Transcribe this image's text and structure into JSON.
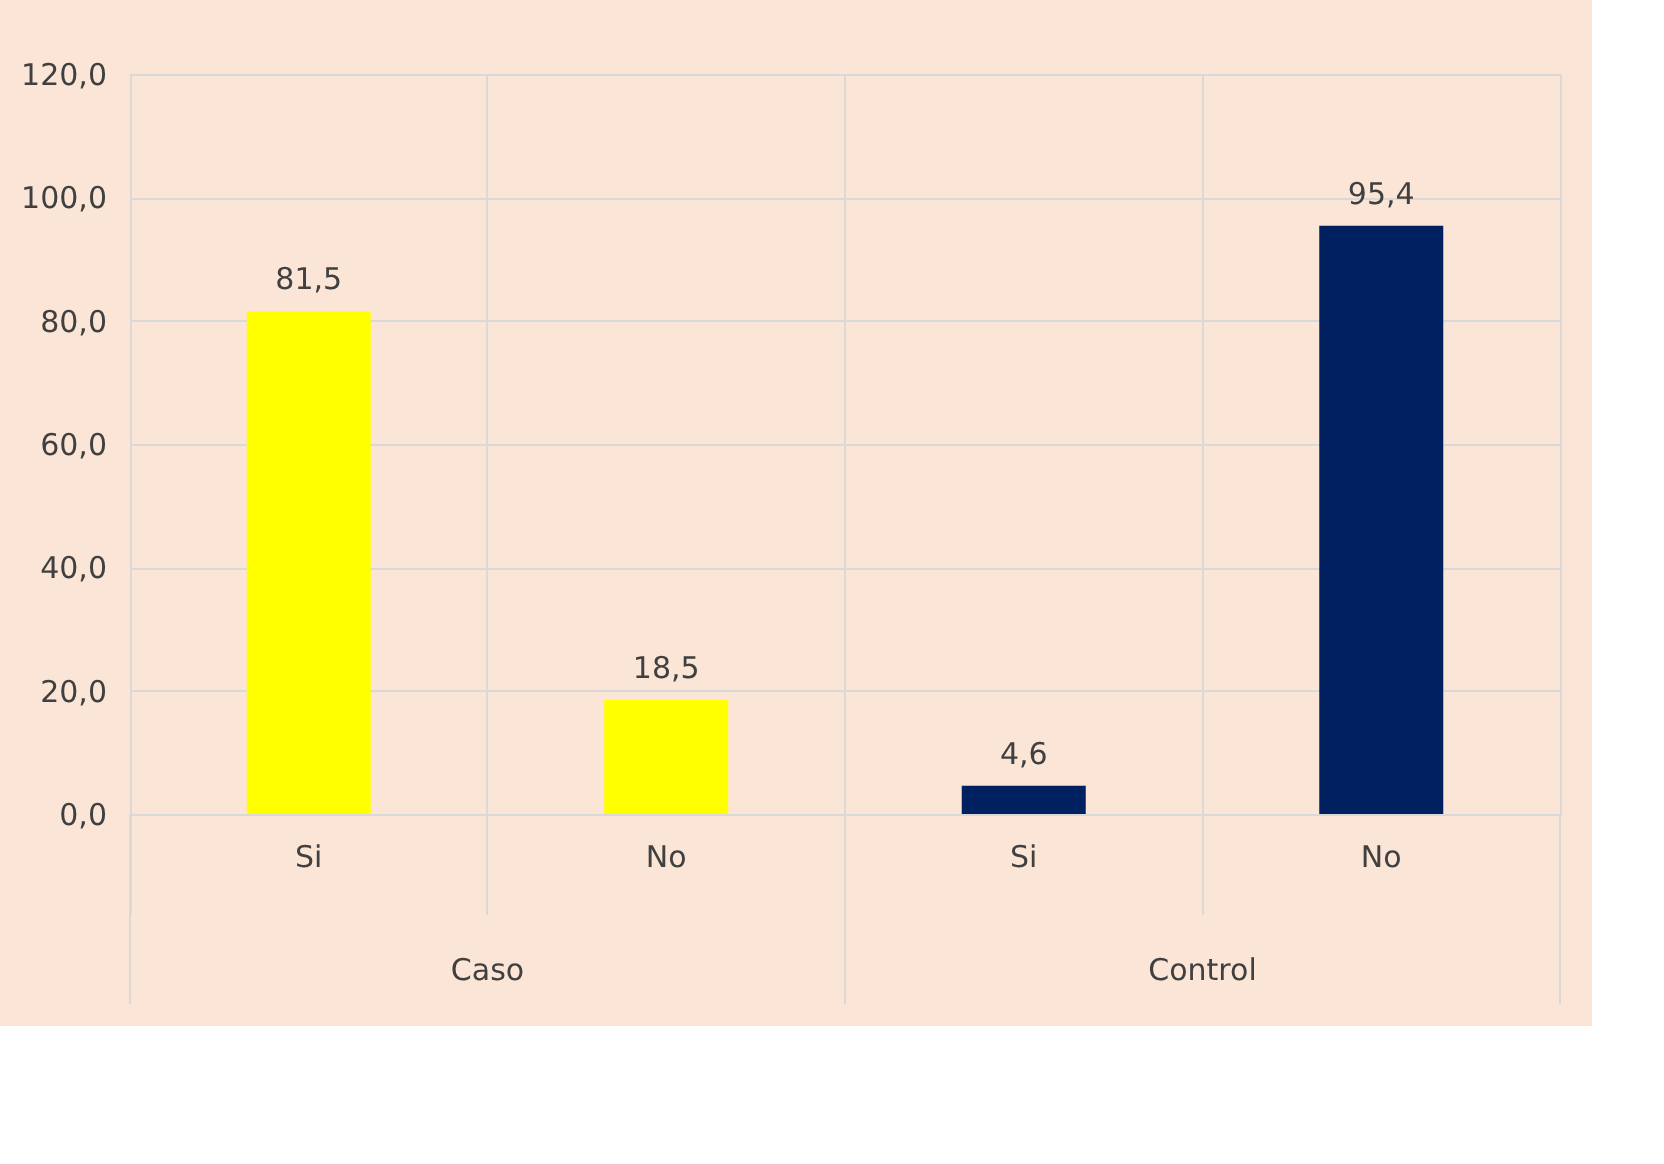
{
  "chart_data": {
    "type": "bar",
    "categories": [
      "Si",
      "No",
      "Si",
      "No"
    ],
    "values": [
      81.5,
      18.5,
      4.6,
      95.4
    ],
    "colors": [
      "#ffff00",
      "#ffff00",
      "#002060",
      "#002060"
    ],
    "value_labels": [
      "81,5",
      "18,5",
      "4,6",
      "95,4"
    ],
    "annotations": [
      "Caso",
      "Control"
    ],
    "ylim": [
      0,
      120
    ],
    "yticks": [
      {
        "value": 0,
        "label": "0,0"
      },
      {
        "value": 20,
        "label": "20,0"
      },
      {
        "value": 40,
        "label": "40,0"
      },
      {
        "value": 60,
        "label": "60,0"
      },
      {
        "value": 80,
        "label": "80,0"
      },
      {
        "value": 100,
        "label": "100,0"
      },
      {
        "value": 120,
        "label": "120,0"
      }
    ],
    "grid": true
  }
}
